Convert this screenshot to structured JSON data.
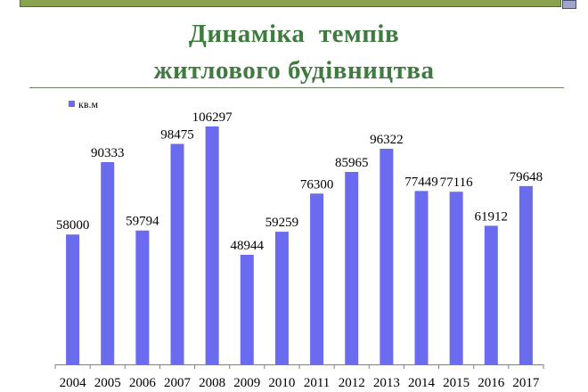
{
  "page": {
    "title_lines": [
      "Динаміка  темпів",
      "житлового будівництва"
    ]
  },
  "colors": {
    "bar": "#6b6bf0",
    "title": "#3f7a3f",
    "top_bar": "#8aa34f"
  },
  "chart_data": {
    "type": "bar",
    "title": "",
    "xlabel": "",
    "ylabel": "",
    "legend_position": "top-left",
    "grid": false,
    "ylim": [
      0,
      115000
    ],
    "categories": [
      "2004",
      "2005",
      "2006",
      "2007",
      "2008",
      "2009",
      "2010",
      "2011",
      "2012",
      "2013",
      "2014",
      "2015",
      "2016",
      "2017"
    ],
    "series": [
      {
        "name": "кв.м",
        "values": [
          58000,
          90333,
          59794,
          98475,
          106297,
          48944,
          59259,
          76300,
          85965,
          96322,
          77449,
          77116,
          61912,
          79648
        ]
      }
    ]
  }
}
